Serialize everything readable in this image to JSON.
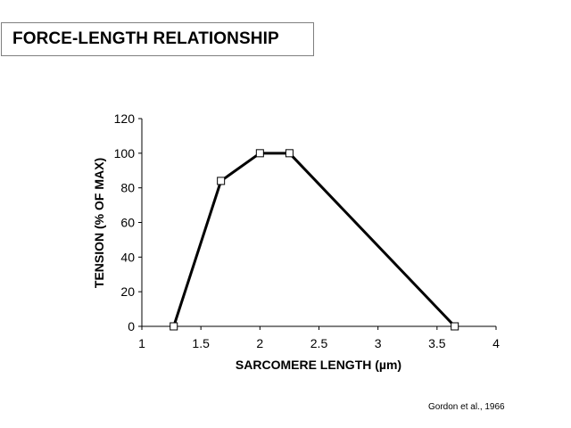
{
  "slide": {
    "title": "FORCE-LENGTH RELATIONSHIP",
    "citation": "Gordon et al., 1966"
  },
  "chart_data": {
    "type": "line",
    "title": "",
    "xlabel": "SARCOMERE LENGTH (µm)",
    "ylabel": "TENSION (% OF MAX)",
    "xlim": [
      1,
      4
    ],
    "ylim": [
      0,
      120
    ],
    "xticks": [
      1,
      1.5,
      2,
      2.5,
      3,
      3.5,
      4
    ],
    "xtick_labels": [
      "1",
      "1.5",
      "2",
      "2.5",
      "3",
      "3.5",
      "4"
    ],
    "yticks": [
      0,
      20,
      40,
      60,
      80,
      100,
      120
    ],
    "ytick_labels": [
      "0",
      "20",
      "40",
      "60",
      "80",
      "100",
      "120"
    ],
    "grid": false,
    "legend": "none",
    "line_color": "#000000",
    "marker": "open-square",
    "series": [
      {
        "x": [
          1.27,
          1.67,
          2.0,
          2.25,
          3.65
        ],
        "y": [
          0,
          84,
          100,
          100,
          0
        ]
      }
    ]
  }
}
